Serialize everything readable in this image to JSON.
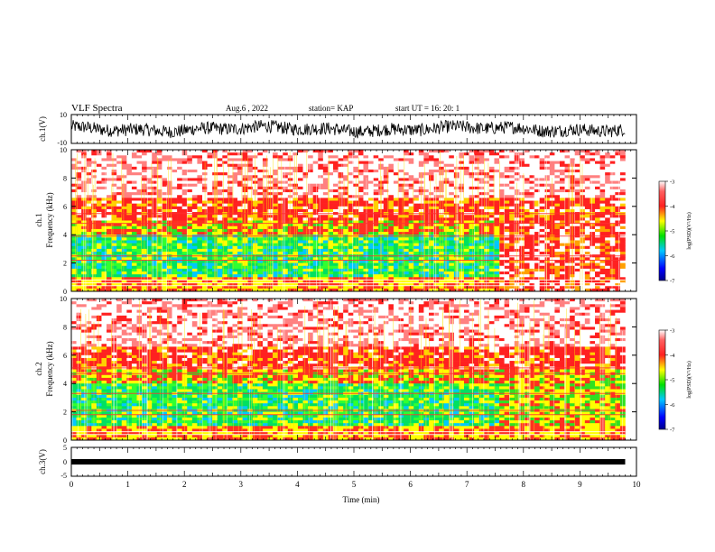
{
  "header": {
    "title": "VLF Spectra",
    "date": "Aug.6  , 2022",
    "station": "station= KAP",
    "start": "start  UT =   16: 20: 1"
  },
  "chart_data": [
    {
      "type": "line",
      "name": "ch1-waveform",
      "ylabel": "ch.1(V)",
      "ylim": [
        -10,
        10
      ],
      "yticks": [
        "10",
        "-10"
      ],
      "xlim": [
        0,
        10
      ]
    },
    {
      "type": "heatmap",
      "name": "ch1-spectrogram",
      "ylabel_top": "ch.1",
      "ylabel": "Frequency  (kHz)",
      "ylim": [
        0,
        10
      ],
      "yticks": [
        "10",
        "8",
        "6",
        "4",
        "2",
        "0"
      ],
      "xlim": [
        0,
        10
      ],
      "data_end_min": 9.8,
      "colorbar": {
        "min": -7,
        "max": -3,
        "ticks": [
          "-3",
          "-4",
          "-5",
          "-6",
          "-7"
        ],
        "label": "log(PSD)(V²/Hz)"
      }
    },
    {
      "type": "heatmap",
      "name": "ch2-spectrogram",
      "ylabel_top": "ch.2",
      "ylabel": "Frequency  (kHz)",
      "ylim": [
        0,
        10
      ],
      "yticks": [
        "10",
        "8",
        "6",
        "4",
        "2",
        "0"
      ],
      "xlim": [
        0,
        10
      ],
      "data_end_min": 9.8,
      "colorbar": {
        "min": -7,
        "max": -3,
        "ticks": [
          "-3",
          "-4",
          "-5",
          "-6",
          "-7"
        ],
        "label": "log(PSD)(V²/Hz)"
      }
    },
    {
      "type": "line",
      "name": "ch3-waveform",
      "ylabel": "ch.3(V)",
      "ylim": [
        -5,
        5
      ],
      "yticks": [
        "5",
        "0",
        "-5"
      ],
      "value": 0,
      "xlim": [
        0,
        10
      ],
      "xlabel": "Time  (min)",
      "xticks": [
        "0",
        "1",
        "2",
        "3",
        "4",
        "5",
        "6",
        "7",
        "8",
        "9",
        "10"
      ]
    }
  ],
  "colors": {
    "low": "#00008b",
    "mid_blue": "#00c8ff",
    "green": "#00e000",
    "yellow": "#ffff00",
    "red": "#ff2020",
    "high": "#ffffff"
  }
}
